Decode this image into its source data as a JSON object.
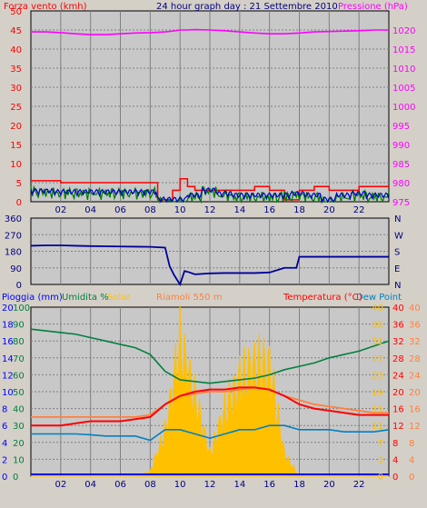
{
  "header": {
    "left": "Forza vento (kmh)",
    "center": "24 hour graph day : 21 Settembre 2010",
    "right": "Pressione (hPa)"
  },
  "x_ticks": [
    "02",
    "04",
    "06",
    "08",
    "10",
    "12",
    "14",
    "16",
    "18",
    "20",
    "22"
  ],
  "panel1": {
    "left_ticks": [
      "0",
      "5",
      "10",
      "15",
      "20",
      "25",
      "30",
      "35",
      "40",
      "45",
      "50"
    ],
    "right_ticks": [
      "975",
      "980",
      "985",
      "990",
      "995",
      "1000",
      "1005",
      "1010",
      "1015",
      "1020"
    ]
  },
  "panel2": {
    "left_ticks": [
      "0",
      "90",
      "180",
      "270",
      "360"
    ],
    "right_ticks": [
      "N",
      "W",
      "S",
      "E",
      "N"
    ]
  },
  "panel3": {
    "labels": {
      "rain": "Pioggia (mm)",
      "hum": "Umidita %",
      "solar": "Solar",
      "feels": "Riamoli 550 m",
      "temp": "Temperatura (°C)",
      "dew": "Dew Point"
    },
    "rain_ticks": [
      "0",
      "2",
      "4",
      "6",
      "8",
      "10",
      "12",
      "14",
      "16",
      "18",
      "20"
    ],
    "hum_ticks": [
      "0",
      "10",
      "20",
      "30",
      "40",
      "50",
      "60",
      "70",
      "80",
      "90",
      "100"
    ],
    "solar_ticks": [
      "0",
      "3",
      "7",
      "11",
      "15",
      "19",
      "23",
      "27",
      "31",
      "35",
      "40"
    ],
    "temp_ticks": [
      "0",
      "4",
      "8",
      "12",
      "16",
      "20",
      "24",
      "28",
      "32",
      "36",
      "40"
    ],
    "temp2_ticks": [
      "0",
      "4",
      "8",
      "12",
      "16",
      "20",
      "24",
      "28",
      "32",
      "36",
      "40"
    ]
  },
  "colors": {
    "bg": "#d4d0c8",
    "plot": "#c8c8c8",
    "grid": "#808080",
    "wind_max": "#ff0000",
    "wind_avg": "#008000",
    "wind_blue": "#0000cc",
    "pressure": "#ff00ff",
    "direction": "#000099",
    "humidity": "#008040",
    "solar": "#ffc000",
    "temp": "#ff0000",
    "feels": "#ff8040",
    "dew": "#0080c0",
    "rain": "#0000ff"
  },
  "chart_data": [
    {
      "type": "line",
      "x": [
        0,
        1,
        2,
        3,
        4,
        5,
        6,
        7,
        8,
        8.5,
        9,
        9.5,
        10,
        10.5,
        11,
        12,
        13,
        14,
        15,
        16,
        17,
        18,
        19,
        20,
        21,
        22,
        23,
        24
      ],
      "xlim": [
        0,
        24
      ],
      "ylim": [
        0,
        50
      ],
      "ylim_right": [
        975,
        1025
      ],
      "series": [
        {
          "name": "Forza vento (kmh)",
          "values": [
            5.5,
            5.5,
            5,
            5,
            5,
            5,
            5,
            5,
            5,
            0.5,
            0.5,
            3,
            6,
            4,
            3,
            3,
            3,
            3,
            4,
            3,
            0.5,
            3,
            4,
            3,
            3,
            4,
            4,
            4
          ]
        },
        {
          "name": "Pressione (hPa)",
          "axis": "right",
          "values": [
            1019.5,
            1019.5,
            1019.3,
            1019,
            1018.8,
            1018.8,
            1019,
            1019.2,
            1019.3,
            1019.4,
            1019.5,
            1019.7,
            1020,
            1020,
            1020.1,
            1020,
            1019.8,
            1019.5,
            1019.2,
            1019,
            1019,
            1019.2,
            1019.5,
            1019.6,
            1019.7,
            1019.8,
            1020,
            1020
          ]
        }
      ]
    },
    {
      "type": "line",
      "x": [
        0,
        1,
        2,
        3,
        4,
        5,
        6,
        7,
        8,
        9,
        9.3,
        9.6,
        10,
        10.3,
        10.6,
        11,
        12,
        13,
        14,
        15,
        16,
        17,
        17.8,
        18,
        19,
        20,
        21,
        22,
        23,
        24
      ],
      "xlim": [
        0,
        24
      ],
      "ylim": [
        0,
        360
      ],
      "series": [
        {
          "name": "Direzione",
          "values": [
            210,
            212,
            212,
            210,
            208,
            207,
            206,
            205,
            204,
            200,
            110,
            40,
            10,
            60,
            80,
            55,
            60,
            62,
            62,
            62,
            65,
            90,
            90,
            150,
            150,
            150,
            150,
            150,
            150,
            150
          ]
        }
      ]
    },
    {
      "type": "area",
      "x": [
        0,
        1,
        2,
        3,
        4,
        5,
        6,
        7,
        8,
        9,
        10,
        11,
        12,
        13,
        14,
        15,
        16,
        17,
        18,
        19,
        20,
        21,
        22,
        23,
        24
      ],
      "xlim": [
        0,
        24
      ],
      "ylim": [
        0,
        100
      ],
      "series": [
        {
          "name": "Umidita %",
          "values": [
            87,
            86,
            85,
            84,
            82,
            80,
            78,
            76,
            72,
            62,
            57,
            56,
            55,
            56,
            57,
            58,
            60,
            63,
            65,
            67,
            70,
            72,
            74,
            77,
            80
          ]
        },
        {
          "name": "Solar",
          "axis": "solar",
          "values": [
            0,
            0,
            0,
            0,
            0,
            0,
            0,
            0,
            1,
            10,
            30,
            18,
            5,
            15,
            22,
            25,
            25,
            5,
            0,
            0,
            0,
            0,
            0,
            0,
            0
          ]
        },
        {
          "name": "Temperatura (°C)",
          "axis": "temp",
          "values": [
            12,
            12,
            12,
            12.5,
            13,
            13,
            13,
            13.5,
            14,
            17,
            19,
            20,
            20.5,
            20.5,
            21,
            21,
            20.5,
            19,
            17,
            16,
            15.5,
            15,
            14.5,
            14.5,
            14.5
          ]
        },
        {
          "name": "Riamoli 550 m",
          "axis": "temp",
          "values": [
            14,
            14,
            14,
            14,
            14,
            14,
            14,
            14,
            14.5,
            17,
            19,
            19.5,
            20,
            20,
            20.5,
            21,
            20.5,
            19,
            18,
            17,
            16.5,
            16,
            15.5,
            15,
            15
          ]
        },
        {
          "name": "Dew Point",
          "axis": "temp",
          "values": [
            10,
            10,
            10,
            10,
            9.8,
            9.5,
            9.5,
            9.5,
            8.5,
            11,
            11,
            10,
            9,
            10,
            11,
            11,
            12,
            12,
            11,
            11,
            11,
            10.5,
            10.5,
            10.5,
            11
          ]
        },
        {
          "name": "Pioggia (mm)",
          "axis": "rain",
          "values": [
            0,
            0,
            0,
            0,
            0,
            0,
            0,
            0,
            0,
            0,
            0,
            0,
            0,
            0,
            0,
            0,
            0,
            0,
            0,
            0,
            0,
            0,
            0,
            0,
            0
          ]
        }
      ]
    }
  ]
}
